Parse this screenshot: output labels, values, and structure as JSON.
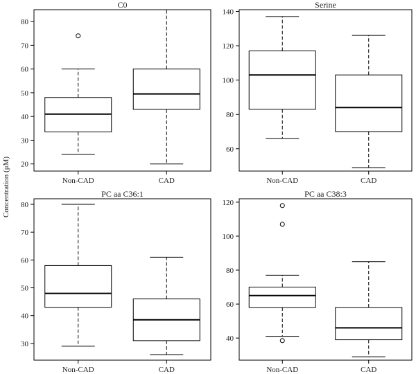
{
  "figure": {
    "ylabel": "Concentration (μM)"
  },
  "chart_data": [
    {
      "type": "boxplot",
      "title": "C0",
      "categories": [
        "Non-CAD",
        "CAD"
      ],
      "yticks": [
        20,
        30,
        40,
        50,
        60,
        70,
        80
      ],
      "ylim": [
        17,
        85
      ],
      "boxes": [
        {
          "category": "Non-CAD",
          "whisker_low": 24,
          "q1": 33.5,
          "median": 41,
          "q3": 48,
          "whisker_high": 60,
          "outliers": [
            74
          ]
        },
        {
          "category": "CAD",
          "whisker_low": 20,
          "q1": 43,
          "median": 49.5,
          "q3": 60,
          "whisker_high": 85,
          "outliers": []
        }
      ]
    },
    {
      "type": "boxplot",
      "title": "Serine",
      "categories": [
        "Non-CAD",
        "CAD"
      ],
      "yticks": [
        60,
        80,
        100,
        120,
        140
      ],
      "ylim": [
        47,
        141
      ],
      "boxes": [
        {
          "category": "Non-CAD",
          "whisker_low": 66,
          "q1": 83,
          "median": 103,
          "q3": 117,
          "whisker_high": 137,
          "outliers": []
        },
        {
          "category": "CAD",
          "whisker_low": 49,
          "q1": 70,
          "median": 84,
          "q3": 103,
          "whisker_high": 126,
          "outliers": []
        }
      ]
    },
    {
      "type": "boxplot",
      "title": "PC aa C36:1",
      "categories": [
        "Non-CAD",
        "CAD"
      ],
      "yticks": [
        30,
        40,
        50,
        60,
        70,
        80
      ],
      "ylim": [
        24,
        82
      ],
      "boxes": [
        {
          "category": "Non-CAD",
          "whisker_low": 29,
          "q1": 43,
          "median": 48,
          "q3": 58,
          "whisker_high": 80,
          "outliers": []
        },
        {
          "category": "CAD",
          "whisker_low": 26,
          "q1": 31,
          "median": 38.5,
          "q3": 46,
          "whisker_high": 61,
          "outliers": []
        }
      ]
    },
    {
      "type": "boxplot",
      "title": "PC aa C38:3",
      "categories": [
        "Non-CAD",
        "CAD"
      ],
      "yticks": [
        40,
        60,
        80,
        100,
        120
      ],
      "ylim": [
        27,
        122
      ],
      "boxes": [
        {
          "category": "Non-CAD",
          "whisker_low": 41,
          "q1": 58,
          "median": 65,
          "q3": 70,
          "whisker_high": 77,
          "outliers": [
            118,
            107,
            38.5
          ]
        },
        {
          "category": "CAD",
          "whisker_low": 29,
          "q1": 39,
          "median": 46,
          "q3": 58,
          "whisker_high": 85,
          "outliers": []
        }
      ]
    }
  ]
}
